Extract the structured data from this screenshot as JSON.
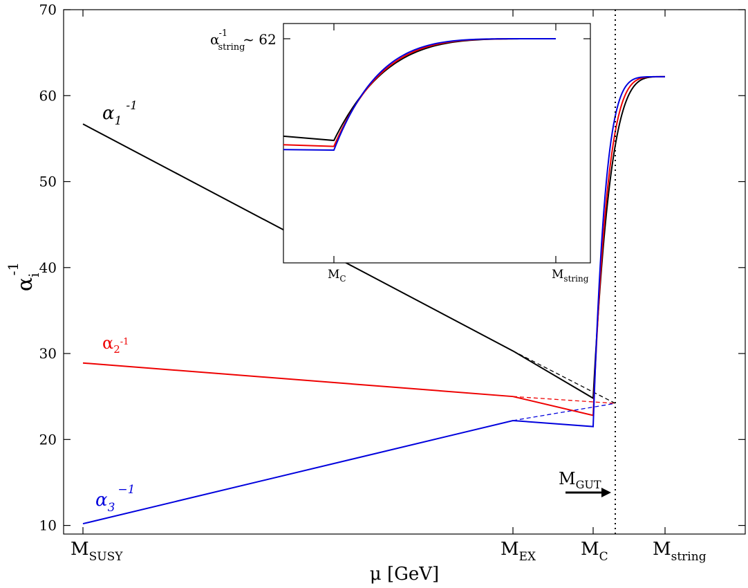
{
  "chart_data": {
    "type": "line",
    "xlabel": "μ [GeV]",
    "ylabel": {
      "base": "α",
      "sub": "i",
      "sup": "-1"
    },
    "ylim": [
      9,
      70
    ],
    "yticks": [
      "10",
      "20",
      "30",
      "40",
      "50",
      "60",
      "70"
    ],
    "xticks": [
      {
        "base": "M",
        "sub": "SUSY"
      },
      {
        "base": "M",
        "sub": "EX"
      },
      {
        "base": "M",
        "sub": "C"
      },
      {
        "base": "M",
        "sub": "string"
      }
    ],
    "colors": {
      "alpha1": "#000000",
      "alpha2": "#ee0000",
      "alpha3": "#0000dd"
    },
    "series_labels": [
      {
        "base": "α",
        "sub": "1",
        "sup": "-1",
        "color": "#000000"
      },
      {
        "base": "α",
        "sub": "2",
        "sup": "-1",
        "color": "#ee0000"
      },
      {
        "base": "α",
        "sub": "3",
        "sup": "−1",
        "color": "#0000dd"
      }
    ],
    "series": [
      {
        "values_at": [
          "M_SUSY",
          "M_EX",
          "M_C",
          "M_string"
        ],
        "start": 56.7,
        "at_MEX": 30.3,
        "at_MC": 24.8,
        "at_string": 62.2
      },
      {
        "values_at": [
          "M_SUSY",
          "M_EX",
          "M_C",
          "M_string"
        ],
        "start": 28.9,
        "at_MEX": 25.0,
        "at_MC": 22.8,
        "at_string": 62.2
      },
      {
        "values_at": [
          "M_SUSY",
          "M_EX",
          "M_C",
          "M_string"
        ],
        "start": 10.2,
        "at_MEX": 22.2,
        "at_MC": 21.5,
        "at_string": 62.2
      }
    ],
    "gut_unification_value": 24.2,
    "gut_label": {
      "base": "M",
      "sub": "GUT"
    },
    "inset": {
      "xticks": [
        {
          "base": "M",
          "sub": "C"
        },
        {
          "base": "M",
          "sub": "string"
        }
      ],
      "annotation": {
        "base": "α",
        "sub": "string",
        "sup": "-1",
        "suffix": "~ 62"
      }
    }
  }
}
